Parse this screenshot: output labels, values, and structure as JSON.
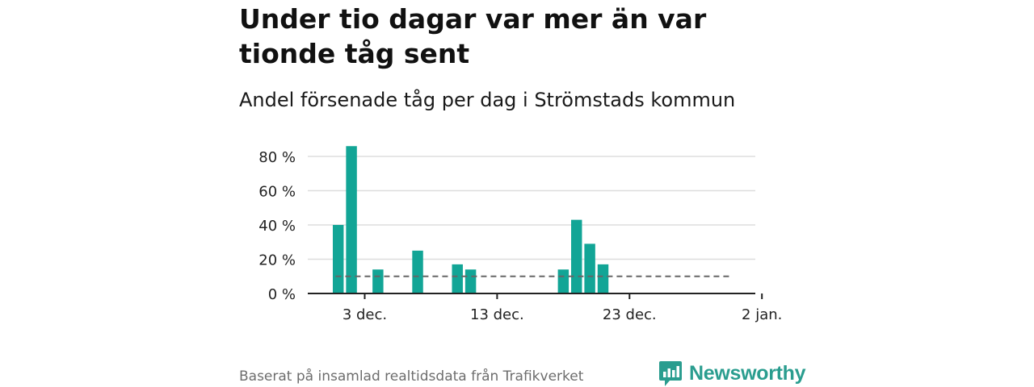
{
  "title": "Under tio dagar var mer än var tionde tåg sent",
  "subtitle": "Andel försenade tåg per dag i Strömstads kommun",
  "source": "Baserat på insamlad realtidsdata från Trafikverket",
  "brand": {
    "name": "Newsworthy",
    "icon": "newsworthy-logo-icon",
    "color": "#2a9d8f"
  },
  "colors": {
    "bar": "#12a596",
    "reference": "#666666",
    "grid": "#dddddd",
    "axis": "#222222"
  },
  "chart_data": {
    "type": "bar",
    "title": "Andel försenade tåg per dag i Strömstads kommun",
    "xlabel": "",
    "ylabel": "",
    "x_domain": [
      -1.3,
      32.5
    ],
    "ylim": [
      0,
      80
    ],
    "yticks": [
      {
        "value": 0,
        "label": "0 %"
      },
      {
        "value": 20,
        "label": "20 %"
      },
      {
        "value": 40,
        "label": "40 %"
      },
      {
        "value": 60,
        "label": "60 %"
      },
      {
        "value": 80,
        "label": "80 %"
      }
    ],
    "xticks": [
      {
        "day": 3,
        "label": "3 dec."
      },
      {
        "day": 13,
        "label": "13 dec."
      },
      {
        "day": 23,
        "label": "23 dec."
      },
      {
        "day": 33,
        "label": "2 jan."
      }
    ],
    "series": [
      {
        "name": "Andel försenade tåg",
        "days": [
          1,
          2,
          4,
          7,
          10,
          11,
          18,
          19,
          20,
          21
        ],
        "values": [
          40,
          86,
          14,
          25,
          17,
          14,
          14,
          43,
          29,
          17
        ]
      }
    ],
    "reference_line": {
      "value": 10,
      "from_day": 0.8,
      "to_day": 30.8,
      "style": "dashed"
    }
  }
}
